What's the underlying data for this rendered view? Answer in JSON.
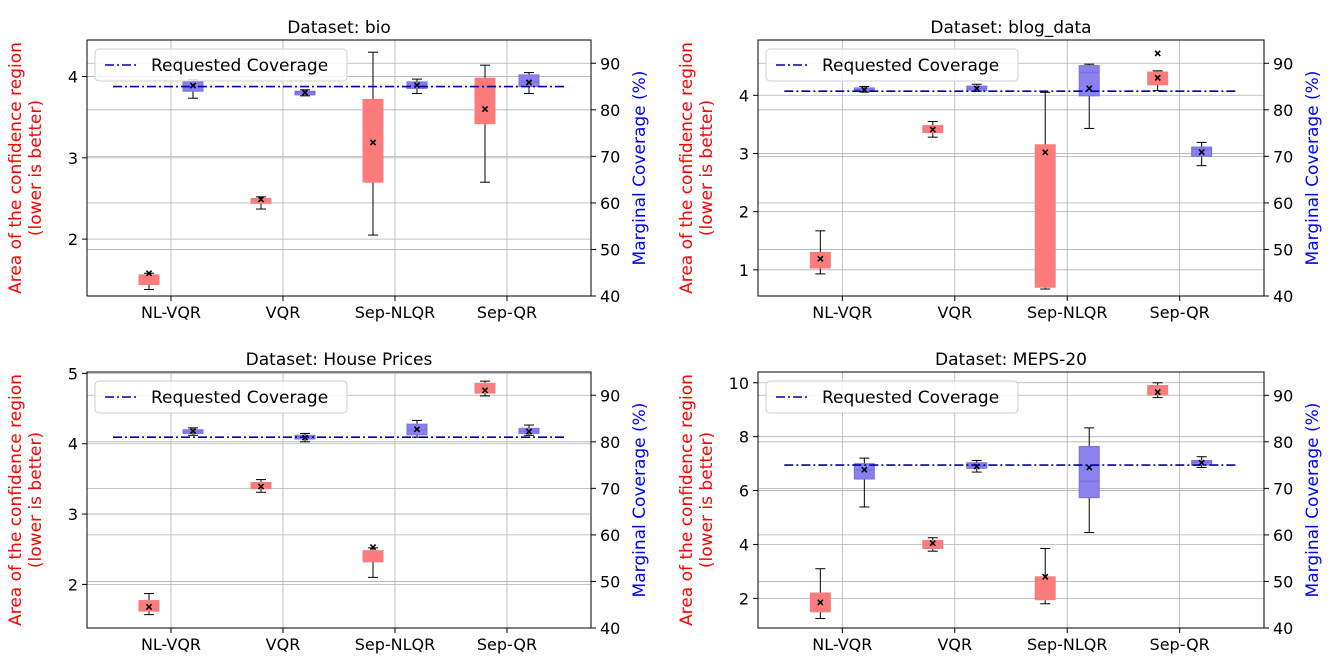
{
  "chart_data": [
    {
      "type": "box",
      "title": "Dataset: bio",
      "categories": [
        "NL-VQR",
        "VQR",
        "Sep-NLQR",
        "Sep-QR"
      ],
      "ylabel_left": [
        "Area of the confidence region",
        "(lower is better)"
      ],
      "ylabel_right": "Marginal Coverage (%)",
      "ylim_left": [
        1.3,
        4.45
      ],
      "yticks_left": [
        2,
        3,
        4
      ],
      "ylim_right": [
        40,
        95
      ],
      "yticks_right": [
        40,
        50,
        60,
        70,
        80,
        90
      ],
      "requested_coverage": 85,
      "legend": "Requested Coverage",
      "area_boxes": [
        {
          "q1": 1.44,
          "median": 1.5,
          "q3": 1.56,
          "whislo": 1.38,
          "whishi": 1.58,
          "mean": 1.58
        },
        {
          "q1": 2.44,
          "median": 2.47,
          "q3": 2.5,
          "whislo": 2.37,
          "whishi": 2.52,
          "mean": 2.49
        },
        {
          "q1": 2.7,
          "median": 3.2,
          "q3": 3.72,
          "whislo": 2.05,
          "whishi": 4.3,
          "mean": 3.19
        },
        {
          "q1": 3.42,
          "median": 3.75,
          "q3": 3.98,
          "whislo": 2.7,
          "whishi": 4.14,
          "mean": 3.6
        }
      ],
      "coverage_boxes": [
        {
          "q1": 84.0,
          "median": 85.0,
          "q3": 86.0,
          "whislo": 82.5,
          "whishi": 86.5,
          "mean": 85.2
        },
        {
          "q1": 83.2,
          "median": 83.7,
          "q3": 84.0,
          "whislo": 83.0,
          "whishi": 84.3,
          "mean": 83.7
        },
        {
          "q1": 84.6,
          "median": 85.3,
          "q3": 86.0,
          "whislo": 83.5,
          "whishi": 86.6,
          "mean": 85.3
        },
        {
          "q1": 85.0,
          "median": 86.0,
          "q3": 87.5,
          "whislo": 83.5,
          "whishi": 88.0,
          "mean": 85.9
        }
      ]
    },
    {
      "type": "box",
      "title": "Dataset: blog_data",
      "categories": [
        "NL-VQR",
        "VQR",
        "Sep-NLQR",
        "Sep-QR"
      ],
      "ylabel_left": [
        "Area of the confidence region",
        "(lower is better)"
      ],
      "ylabel_right": "Marginal Coverage (%)",
      "ylim_left": [
        0.55,
        4.95
      ],
      "yticks_left": [
        1,
        2,
        3,
        4
      ],
      "ylim_right": [
        40,
        95
      ],
      "yticks_right": [
        40,
        50,
        60,
        70,
        80,
        90
      ],
      "requested_coverage": 84,
      "legend": "Requested Coverage",
      "area_boxes": [
        {
          "q1": 1.03,
          "median": 1.15,
          "q3": 1.3,
          "whislo": 0.93,
          "whishi": 1.67,
          "mean": 1.19
        },
        {
          "q1": 3.36,
          "median": 3.42,
          "q3": 3.48,
          "whislo": 3.28,
          "whishi": 3.55,
          "mean": 3.41
        },
        {
          "q1": 0.7,
          "median": 0.75,
          "q3": 3.15,
          "whislo": 0.67,
          "whishi": 4.05,
          "mean": 3.02
        },
        {
          "q1": 4.18,
          "median": 4.38,
          "q3": 4.4,
          "whislo": 4.08,
          "whishi": 4.42,
          "mean": 4.3
        }
      ],
      "area_fliers": [
        [],
        [],
        [],
        [
          4.72
        ]
      ],
      "coverage_boxes": [
        {
          "q1": 84.0,
          "median": 84.3,
          "q3": 84.7,
          "whislo": 83.8,
          "whishi": 85.0,
          "mean": 84.3
        },
        {
          "q1": 84.2,
          "median": 84.6,
          "q3": 85.1,
          "whislo": 84.0,
          "whishi": 85.5,
          "mean": 84.6
        },
        {
          "q1": 83.0,
          "median": 88.0,
          "q3": 89.5,
          "whislo": 76.0,
          "whishi": 89.8,
          "mean": 84.6
        },
        {
          "q1": 70.0,
          "median": 71.5,
          "q3": 72.0,
          "whislo": 68.0,
          "whishi": 73.0,
          "mean": 70.9
        }
      ]
    },
    {
      "type": "box",
      "title": "Dataset: House Prices",
      "categories": [
        "NL-VQR",
        "VQR",
        "Sep-NLQR",
        "Sep-QR"
      ],
      "ylabel_left": [
        "Area of the confidence region",
        "(lower is better)"
      ],
      "ylabel_right": "Marginal Coverage (%)",
      "ylim_left": [
        1.38,
        5.02
      ],
      "yticks_left": [
        2,
        3,
        4,
        5
      ],
      "ylim_right": [
        40,
        95
      ],
      "yticks_right": [
        40,
        50,
        60,
        70,
        80,
        90
      ],
      "requested_coverage": 81,
      "legend": "Requested Coverage",
      "area_boxes": [
        {
          "q1": 1.62,
          "median": 1.7,
          "q3": 1.77,
          "whislo": 1.57,
          "whishi": 1.87,
          "mean": 1.68
        },
        {
          "q1": 3.36,
          "median": 3.41,
          "q3": 3.45,
          "whislo": 3.31,
          "whishi": 3.49,
          "mean": 3.39
        },
        {
          "q1": 2.32,
          "median": 2.42,
          "q3": 2.48,
          "whislo": 2.1,
          "whishi": 2.52,
          "mean": 2.53
        },
        {
          "q1": 4.72,
          "median": 4.82,
          "q3": 4.86,
          "whislo": 4.68,
          "whishi": 4.89,
          "mean": 4.76
        }
      ],
      "coverage_boxes": [
        {
          "q1": 81.8,
          "median": 82.2,
          "q3": 82.6,
          "whislo": 81.4,
          "whishi": 83.0,
          "mean": 82.3
        },
        {
          "q1": 80.6,
          "median": 81.0,
          "q3": 81.4,
          "whislo": 80.0,
          "whishi": 81.8,
          "mean": 80.9
        },
        {
          "q1": 81.5,
          "median": 82.5,
          "q3": 83.8,
          "whislo": 81.0,
          "whishi": 84.6,
          "mean": 82.7
        },
        {
          "q1": 81.8,
          "median": 82.3,
          "q3": 82.9,
          "whislo": 81.4,
          "whishi": 83.6,
          "mean": 82.2
        }
      ]
    },
    {
      "type": "box",
      "title": "Dataset: MEPS-20",
      "categories": [
        "NL-VQR",
        "VQR",
        "Sep-NLQR",
        "Sep-QR"
      ],
      "ylabel_left": [
        "Area of the confidence region",
        "(lower is better)"
      ],
      "ylabel_right": "Marginal Coverage (%)",
      "ylim_left": [
        0.9,
        10.4
      ],
      "yticks_left": [
        2,
        4,
        6,
        8,
        10
      ],
      "ylim_right": [
        40,
        95
      ],
      "yticks_right": [
        40,
        50,
        60,
        70,
        80,
        90
      ],
      "requested_coverage": 75,
      "legend": "Requested Coverage",
      "area_boxes": [
        {
          "q1": 1.5,
          "median": 1.85,
          "q3": 2.2,
          "whislo": 1.25,
          "whishi": 3.1,
          "mean": 1.85
        },
        {
          "q1": 3.85,
          "median": 4.0,
          "q3": 4.15,
          "whislo": 3.75,
          "whishi": 4.25,
          "mean": 4.05
        },
        {
          "q1": 1.95,
          "median": 2.15,
          "q3": 2.8,
          "whislo": 1.8,
          "whishi": 3.85,
          "mean": 2.8
        },
        {
          "q1": 9.55,
          "median": 9.75,
          "q3": 9.9,
          "whislo": 9.45,
          "whishi": 10.0,
          "mean": 9.65
        }
      ],
      "coverage_boxes": [
        {
          "q1": 72.0,
          "median": 74.0,
          "q3": 75.3,
          "whislo": 66.0,
          "whishi": 76.5,
          "mean": 74.0
        },
        {
          "q1": 74.3,
          "median": 74.8,
          "q3": 75.5,
          "whislo": 73.5,
          "whishi": 76.0,
          "mean": 74.7
        },
        {
          "q1": 68.0,
          "median": 71.5,
          "q3": 79.0,
          "whislo": 60.5,
          "whishi": 83.0,
          "mean": 74.5
        },
        {
          "q1": 75.0,
          "median": 75.6,
          "q3": 76.0,
          "whislo": 74.5,
          "whishi": 76.8,
          "mean": 75.5
        }
      ]
    }
  ]
}
